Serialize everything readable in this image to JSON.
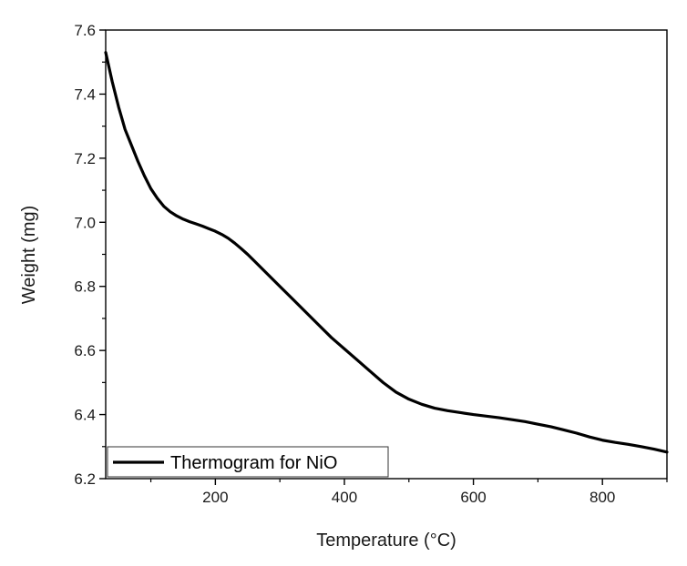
{
  "chart_data": {
    "type": "line",
    "title": "",
    "xlabel": "Temperature (°C)",
    "ylabel": "Weight (mg)",
    "xlim": [
      30,
      900
    ],
    "ylim": [
      6.2,
      7.6
    ],
    "x_ticks": [
      200,
      400,
      600,
      800
    ],
    "x_tick_labels": [
      "200",
      "400",
      "600",
      "800"
    ],
    "y_ticks": [
      6.2,
      6.4,
      6.6,
      6.8,
      7.0,
      7.2,
      7.4,
      7.6
    ],
    "y_tick_labels": [
      "6.2",
      "6.4",
      "6.6",
      "6.8",
      "7.0",
      "7.2",
      "7.4",
      "7.6"
    ],
    "legend_position": "bottom-left",
    "series": [
      {
        "name": "Thermogram for NiO",
        "color": "#000000",
        "x": [
          30,
          40,
          50,
          60,
          70,
          80,
          90,
          100,
          110,
          120,
          130,
          140,
          150,
          160,
          170,
          180,
          190,
          200,
          210,
          220,
          230,
          240,
          250,
          260,
          280,
          300,
          320,
          340,
          360,
          380,
          400,
          420,
          440,
          460,
          480,
          500,
          520,
          540,
          560,
          580,
          600,
          620,
          640,
          660,
          680,
          700,
          720,
          740,
          760,
          780,
          800,
          820,
          840,
          860,
          880,
          900
        ],
        "y": [
          7.53,
          7.44,
          7.36,
          7.29,
          7.24,
          7.19,
          7.145,
          7.105,
          7.075,
          7.05,
          7.033,
          7.02,
          7.01,
          7.002,
          6.995,
          6.988,
          6.98,
          6.972,
          6.962,
          6.95,
          6.935,
          6.918,
          6.9,
          6.88,
          6.84,
          6.8,
          6.76,
          6.72,
          6.68,
          6.64,
          6.605,
          6.57,
          6.535,
          6.5,
          6.47,
          6.448,
          6.432,
          6.42,
          6.412,
          6.406,
          6.4,
          6.395,
          6.39,
          6.384,
          6.378,
          6.37,
          6.362,
          6.352,
          6.342,
          6.33,
          6.32,
          6.313,
          6.307,
          6.3,
          6.292,
          6.283
        ]
      }
    ]
  }
}
